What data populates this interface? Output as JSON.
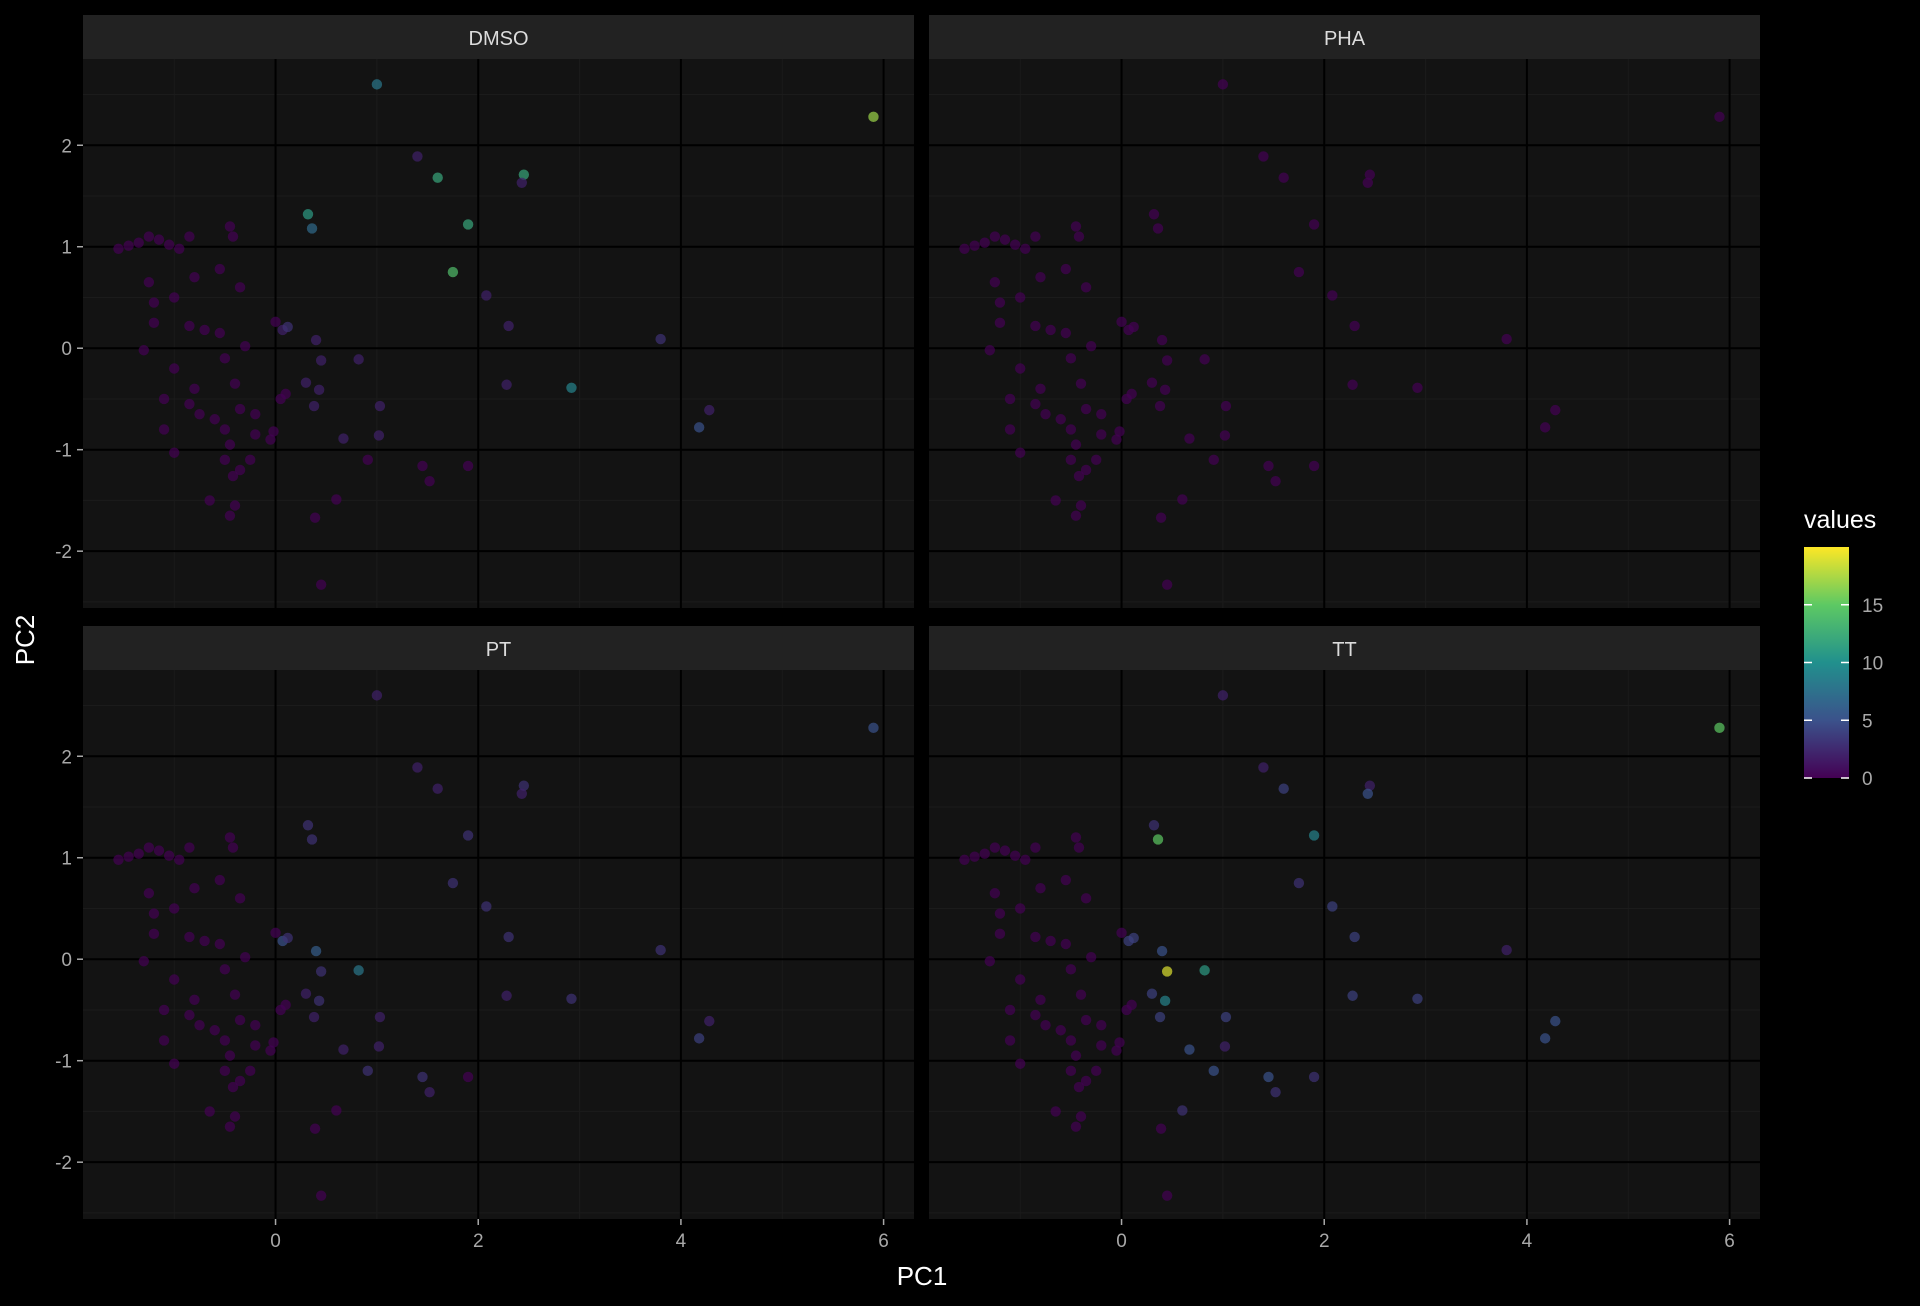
{
  "chart_data": {
    "type": "scatter",
    "xlabel": "PC1",
    "ylabel": "PC2",
    "xlim": [
      -1.9,
      6.3
    ],
    "ylim": [
      -2.56,
      2.85
    ],
    "x_ticks": [
      0,
      2,
      4,
      6
    ],
    "y_ticks": [
      -2,
      -1,
      0,
      1,
      2
    ],
    "grid": true,
    "point_opacity": 0.7,
    "legend": {
      "title": "values",
      "placement": "right",
      "min": 0,
      "max": 20,
      "ticks": [
        0,
        5,
        10,
        15
      ]
    },
    "colors": {
      "panel_background": "#131313",
      "strip_background": "#222222",
      "grid_major": "#000000",
      "grid_minor": "#1b1b1b",
      "colormap": [
        "#440154",
        "#3b528b",
        "#21908d",
        "#5dc963",
        "#fde725"
      ]
    },
    "panels": [
      {
        "name": "DMSO",
        "values": {
          "p0": 8,
          "p1": 17,
          "p2": 2,
          "p3": 12,
          "p4": 12,
          "p5": 2,
          "p6": 12,
          "p7": 14,
          "p8": 2,
          "p9": 2,
          "p10": 3,
          "p11": 2,
          "p12": 9,
          "p13": 5,
          "p14": 2,
          "p15": 11,
          "p16": 7,
          "p17": 2,
          "p18": 3,
          "p19": 2,
          "p20": 2,
          "p21": 2,
          "p22": 2,
          "p23": 2,
          "p24": 2,
          "p25": 2,
          "p26": 2,
          "p27": 2
        }
      },
      {
        "name": "PHA",
        "values": {}
      },
      {
        "name": "PT",
        "values": {
          "p0": 2,
          "p1": 5,
          "p2": 2,
          "p3": 2,
          "p4": 3,
          "p5": 2,
          "p6": 3,
          "p7": 3,
          "p8": 3,
          "p9": 3,
          "p10": 3,
          "p11": 2,
          "p12": 3,
          "p13": 4,
          "p14": 2,
          "p15": 3,
          "p16": 3,
          "p17": 5,
          "p18": 3,
          "p19": 6,
          "p20": 3,
          "p21": 8,
          "p22": 2,
          "p23": 3,
          "p24": 2,
          "p25": 2,
          "p26": 2,
          "p27": 2,
          "p28": 3,
          "p29": 3,
          "p30": 2
        }
      },
      {
        "name": "TT",
        "values": {
          "p0": 2,
          "p1": 15,
          "p2": 2,
          "p3": 4,
          "p4": 2,
          "p5": 5,
          "p6": 9,
          "p7": 3,
          "p8": 4,
          "p9": 4,
          "p10": 2,
          "p11": 4,
          "p12": 4,
          "p13": 5,
          "p14": 5,
          "p15": 3,
          "p16": 15,
          "p17": 4,
          "p18": 4,
          "p19": 5,
          "p20": 19,
          "p21": 11,
          "p22": 4,
          "p23": 9,
          "p24": 4,
          "p25": 4,
          "p26": 2,
          "p27": 5,
          "p28": 5,
          "p29": 5,
          "p30": 3,
          "p31": 3,
          "p32": 3
        }
      }
    ],
    "points": [
      {
        "id": "p0",
        "x": 1.0,
        "y": 2.6
      },
      {
        "id": "p1",
        "x": 5.9,
        "y": 2.28
      },
      {
        "id": "p2",
        "x": 1.4,
        "y": 1.89
      },
      {
        "id": "p3",
        "x": 1.6,
        "y": 1.68
      },
      {
        "id": "p4",
        "x": 2.45,
        "y": 1.71
      },
      {
        "id": "p5",
        "x": 2.43,
        "y": 1.63
      },
      {
        "id": "p6",
        "x": 1.9,
        "y": 1.22
      },
      {
        "id": "p7",
        "x": 1.75,
        "y": 0.75
      },
      {
        "id": "p8",
        "x": 2.08,
        "y": 0.52
      },
      {
        "id": "p9",
        "x": 2.3,
        "y": 0.22
      },
      {
        "id": "p10",
        "x": 3.8,
        "y": 0.09
      },
      {
        "id": "p11",
        "x": 2.28,
        "y": -0.36
      },
      {
        "id": "p12",
        "x": 2.92,
        "y": -0.39
      },
      {
        "id": "p13",
        "x": 4.18,
        "y": -0.78
      },
      {
        "id": "p14",
        "x": 4.28,
        "y": -0.61
      },
      {
        "id": "p15",
        "x": 0.32,
        "y": 1.32
      },
      {
        "id": "p16",
        "x": 0.36,
        "y": 1.18
      },
      {
        "id": "p17",
        "x": 0.07,
        "y": 0.18
      },
      {
        "id": "p18",
        "x": 0.12,
        "y": 0.21
      },
      {
        "id": "p19",
        "x": 0.4,
        "y": 0.08
      },
      {
        "id": "p20",
        "x": 0.45,
        "y": -0.12
      },
      {
        "id": "p21",
        "x": 0.82,
        "y": -0.11
      },
      {
        "id": "p22",
        "x": 0.3,
        "y": -0.34
      },
      {
        "id": "p23",
        "x": 0.43,
        "y": -0.41
      },
      {
        "id": "p24",
        "x": 0.38,
        "y": -0.57
      },
      {
        "id": "p25",
        "x": 1.03,
        "y": -0.57
      },
      {
        "id": "p26",
        "x": 1.02,
        "y": -0.86
      },
      {
        "id": "p27",
        "x": 0.67,
        "y": -0.89
      },
      {
        "id": "p28",
        "x": 0.91,
        "y": -1.1
      },
      {
        "id": "p29",
        "x": 1.45,
        "y": -1.16
      },
      {
        "id": "p30",
        "x": 1.52,
        "y": -1.31
      },
      {
        "id": "p31",
        "x": 1.9,
        "y": -1.16
      },
      {
        "id": "p32",
        "x": 0.6,
        "y": -1.49
      },
      {
        "id": "p33",
        "x": 0.39,
        "y": -1.67
      },
      {
        "id": "p34",
        "x": 0.45,
        "y": -2.33
      },
      {
        "id": "p35",
        "x": -0.4,
        "y": -1.55
      },
      {
        "id": "p36",
        "x": -0.45,
        "y": -1.65
      },
      {
        "id": "p37",
        "x": -0.42,
        "y": -1.26
      },
      {
        "id": "p38",
        "x": -0.35,
        "y": -1.2
      },
      {
        "id": "p39",
        "x": -0.25,
        "y": -1.1
      },
      {
        "id": "p40",
        "x": -0.5,
        "y": -1.1
      },
      {
        "id": "p41",
        "x": -0.2,
        "y": -0.85
      },
      {
        "id": "p42",
        "x": -0.02,
        "y": -0.82
      },
      {
        "id": "p43",
        "x": -0.05,
        "y": -0.9
      },
      {
        "id": "p44",
        "x": 0.05,
        "y": -0.5
      },
      {
        "id": "p45",
        "x": 0.1,
        "y": -0.45
      },
      {
        "id": "p46",
        "x": -0.2,
        "y": -0.65
      },
      {
        "id": "p47",
        "x": -0.35,
        "y": -0.6
      },
      {
        "id": "p48",
        "x": -0.5,
        "y": -0.8
      },
      {
        "id": "p49",
        "x": -0.6,
        "y": -0.7
      },
      {
        "id": "p50",
        "x": -0.75,
        "y": -0.65
      },
      {
        "id": "p51",
        "x": -0.85,
        "y": -0.55
      },
      {
        "id": "p52",
        "x": -0.8,
        "y": -0.4
      },
      {
        "id": "p53",
        "x": -0.4,
        "y": -0.35
      },
      {
        "id": "p54",
        "x": -0.5,
        "y": -0.1
      },
      {
        "id": "p55",
        "x": -0.3,
        "y": 0.02
      },
      {
        "id": "p56",
        "x": -0.55,
        "y": 0.15
      },
      {
        "id": "p57",
        "x": -0.7,
        "y": 0.18
      },
      {
        "id": "p58",
        "x": -0.85,
        "y": 0.22
      },
      {
        "id": "p59",
        "x": -1.0,
        "y": -0.2
      },
      {
        "id": "p60",
        "x": -1.1,
        "y": -0.5
      },
      {
        "id": "p61",
        "x": -1.1,
        "y": -0.8
      },
      {
        "id": "p62",
        "x": -1.0,
        "y": -1.03
      },
      {
        "id": "p63",
        "x": -0.65,
        "y": -1.5
      },
      {
        "id": "p64",
        "x": -0.45,
        "y": -0.95
      },
      {
        "id": "p65",
        "x": 0.0,
        "y": 0.26
      },
      {
        "id": "p66",
        "x": -0.35,
        "y": 0.6
      },
      {
        "id": "p67",
        "x": -0.55,
        "y": 0.78
      },
      {
        "id": "p68",
        "x": -0.8,
        "y": 0.7
      },
      {
        "id": "p69",
        "x": -1.0,
        "y": 0.5
      },
      {
        "id": "p70",
        "x": -1.2,
        "y": 0.45
      },
      {
        "id": "p71",
        "x": -1.25,
        "y": 0.65
      },
      {
        "id": "p72",
        "x": -1.2,
        "y": 0.25
      },
      {
        "id": "p73",
        "x": -1.3,
        "y": -0.02
      },
      {
        "id": "p74",
        "x": -1.55,
        "y": 0.98
      },
      {
        "id": "p75",
        "x": -1.45,
        "y": 1.01
      },
      {
        "id": "p76",
        "x": -1.35,
        "y": 1.04
      },
      {
        "id": "p77",
        "x": -1.25,
        "y": 1.1
      },
      {
        "id": "p78",
        "x": -1.15,
        "y": 1.07
      },
      {
        "id": "p79",
        "x": -1.05,
        "y": 1.02
      },
      {
        "id": "p80",
        "x": -0.85,
        "y": 1.1
      },
      {
        "id": "p81",
        "x": -0.45,
        "y": 1.2
      },
      {
        "id": "p82",
        "x": -0.42,
        "y": 1.1
      },
      {
        "id": "p83",
        "x": -0.95,
        "y": 0.98
      }
    ]
  }
}
